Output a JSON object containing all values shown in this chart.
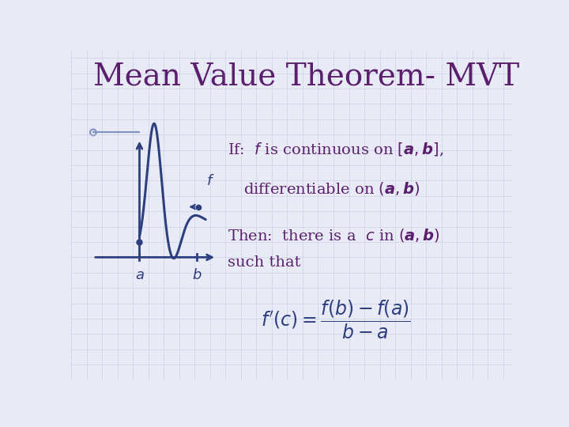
{
  "title": "Mean Value Theorem- MVT",
  "title_color": "#5B1F6E",
  "title_fontsize": 28,
  "bg_color": "#E8EBF5",
  "grid_color": "#C5CBE0",
  "curve_color": "#2E3F7F",
  "text_color": "#5B1F6E",
  "graph_text_color": "#2E3F7F",
  "if_line": "If:  $f$ is continuous on $[\\boldsymbol{a, b}]$,",
  "diff_line": "differentiable on $(\\boldsymbol{a, b})$",
  "then_line": "Then:  there is a  $c$ in $(\\boldsymbol{a, b})$",
  "such_line": "such that"
}
